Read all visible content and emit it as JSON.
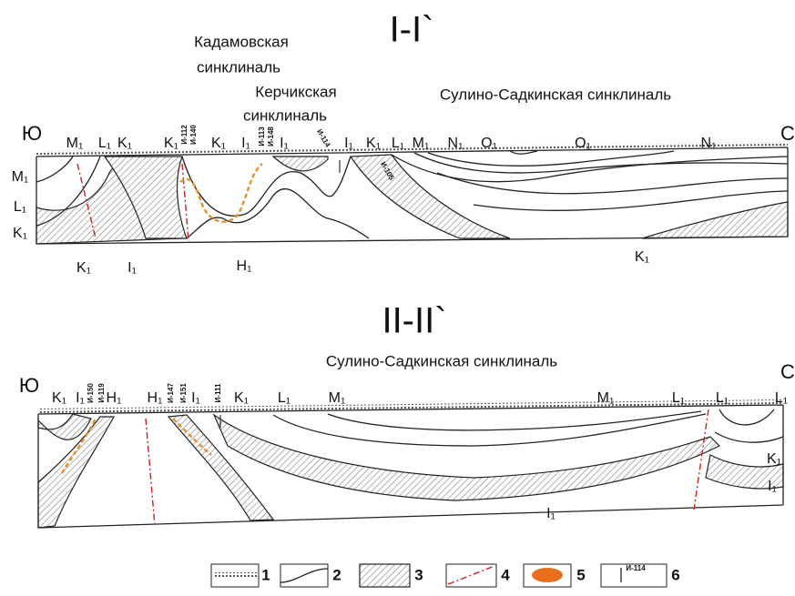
{
  "section1": {
    "title": "I-I`",
    "syncline_labels": [
      [
        "Кадамовская",
        "синклиналь"
      ],
      [
        "Керчикская",
        "синклиналь"
      ],
      [
        "Сулино-Садкинская синклиналь"
      ]
    ],
    "south": "Ю",
    "north": "С",
    "top_labels": [
      "M₁",
      "L₁",
      "K₁",
      "K₁",
      "K₁",
      "I₁",
      "I₁",
      "I₁",
      "K₁",
      "L₁",
      "M₁",
      "N₁",
      "O₁",
      "O₁",
      "N₁"
    ],
    "well_labels": [
      "И-112",
      "И-140",
      "И-113",
      "И-148",
      "И-114",
      "И-105"
    ],
    "left_labels": [
      "M₁",
      "L₁",
      "K₁"
    ],
    "bottom_labels": [
      "K₁",
      "I₁",
      "H₁",
      "K₁"
    ]
  },
  "section2": {
    "title": "II-II`",
    "syncline_labels": [
      [
        "Сулино-Садкинская синклиналь"
      ]
    ],
    "south": "Ю",
    "north": "С",
    "top_labels": [
      "K₁",
      "I₁",
      "H₁",
      "H₁",
      "I₁",
      "K₁",
      "L₁",
      "M₁",
      "M₁",
      "L₁",
      "L₁",
      "L₁"
    ],
    "well_labels": [
      "И-150",
      "И-119",
      "И-147",
      "И-151",
      "И-111"
    ],
    "right_labels": [
      "K₁",
      "I₁"
    ],
    "bottom_labels": [
      "I₁"
    ]
  },
  "legend": {
    "items": [
      "1",
      "2",
      "3",
      "4",
      "5",
      "6"
    ],
    "well_label": "И-114"
  }
}
